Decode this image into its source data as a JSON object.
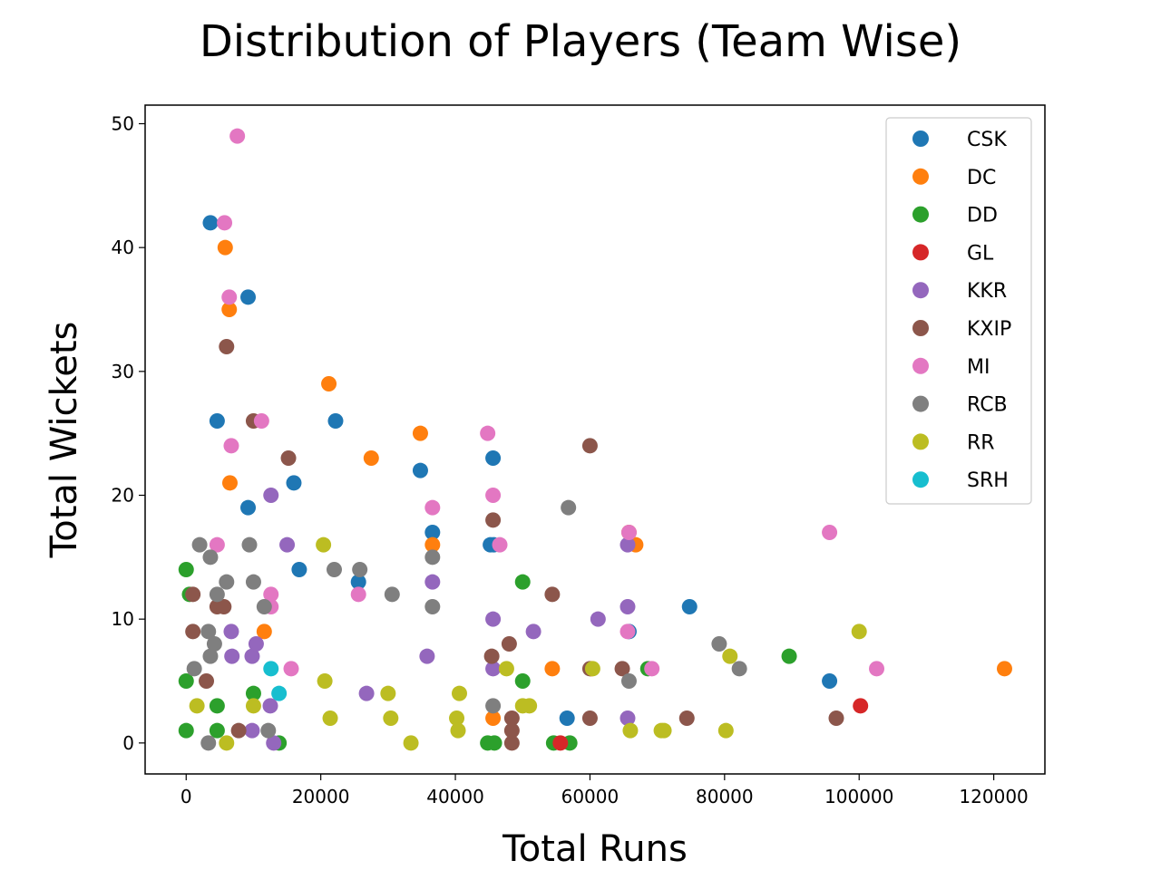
{
  "chart_data": {
    "type": "scatter",
    "title": "Distribution of Players (Team Wise)",
    "xlabel": "Total Runs",
    "ylabel": "Total Wickets",
    "xlim": [
      -6100,
      127600
    ],
    "ylim": [
      -2.5,
      51.5
    ],
    "xticks": [
      0,
      20000,
      40000,
      60000,
      80000,
      100000,
      120000
    ],
    "xtick_labels": [
      "0",
      "20000",
      "40000",
      "60000",
      "80000",
      "100000",
      "120000"
    ],
    "yticks": [
      0,
      10,
      20,
      30,
      40,
      50
    ],
    "ytick_labels": [
      "0",
      "10",
      "20",
      "30",
      "40",
      "50"
    ],
    "legend_position": "top-right",
    "grid": false,
    "series": [
      {
        "name": "CSK",
        "color": "#1f77b4",
        "points": [
          [
            3600,
            42
          ],
          [
            9200,
            36
          ],
          [
            4600,
            26
          ],
          [
            22200,
            26
          ],
          [
            9200,
            19
          ],
          [
            16000,
            21
          ],
          [
            16800,
            14
          ],
          [
            25600,
            13
          ],
          [
            34800,
            22
          ],
          [
            36600,
            17
          ],
          [
            45600,
            23
          ],
          [
            45200,
            16
          ],
          [
            45700,
            16
          ],
          [
            56600,
            2
          ],
          [
            65800,
            9
          ],
          [
            74800,
            11
          ],
          [
            95600,
            5
          ]
        ]
      },
      {
        "name": "DC",
        "color": "#ff7f0e",
        "points": [
          [
            5800,
            40
          ],
          [
            6400,
            35
          ],
          [
            6500,
            21
          ],
          [
            21200,
            29
          ],
          [
            27500,
            23
          ],
          [
            34800,
            25
          ],
          [
            36600,
            16
          ],
          [
            11600,
            9
          ],
          [
            45600,
            2
          ],
          [
            54400,
            6
          ],
          [
            65800,
            17
          ],
          [
            66800,
            16
          ],
          [
            60200,
            6
          ],
          [
            121600,
            6
          ]
        ]
      },
      {
        "name": "DD",
        "color": "#2ca02c",
        "points": [
          [
            0,
            14
          ],
          [
            500,
            12
          ],
          [
            0,
            5
          ],
          [
            0,
            1
          ],
          [
            4600,
            3
          ],
          [
            4600,
            1
          ],
          [
            10000,
            4
          ],
          [
            13800,
            0
          ],
          [
            44800,
            0
          ],
          [
            45800,
            0
          ],
          [
            50000,
            13
          ],
          [
            50000,
            5
          ],
          [
            54600,
            0
          ],
          [
            57000,
            0
          ],
          [
            68600,
            6
          ],
          [
            89600,
            7
          ]
        ]
      },
      {
        "name": "GL",
        "color": "#d62728",
        "points": [
          [
            55600,
            0
          ],
          [
            100200,
            3
          ]
        ]
      },
      {
        "name": "KKR",
        "color": "#9467bd",
        "points": [
          [
            12600,
            20
          ],
          [
            15000,
            16
          ],
          [
            6700,
            9
          ],
          [
            6800,
            7
          ],
          [
            9800,
            7
          ],
          [
            10400,
            8
          ],
          [
            12500,
            3
          ],
          [
            9800,
            1
          ],
          [
            13000,
            0
          ],
          [
            26800,
            4
          ],
          [
            35800,
            7
          ],
          [
            36600,
            13
          ],
          [
            45600,
            10
          ],
          [
            45600,
            6
          ],
          [
            51600,
            9
          ],
          [
            61200,
            10
          ],
          [
            65600,
            16
          ],
          [
            65600,
            11
          ],
          [
            65600,
            2
          ]
        ]
      },
      {
        "name": "KXIP",
        "color": "#8c564b",
        "points": [
          [
            6000,
            32
          ],
          [
            10000,
            26
          ],
          [
            15200,
            23
          ],
          [
            1000,
            12
          ],
          [
            1000,
            9
          ],
          [
            3000,
            5
          ],
          [
            4600,
            11
          ],
          [
            5600,
            11
          ],
          [
            7800,
            1
          ],
          [
            45600,
            18
          ],
          [
            45400,
            7
          ],
          [
            48000,
            8
          ],
          [
            48400,
            2
          ],
          [
            48400,
            1
          ],
          [
            48400,
            0
          ],
          [
            54400,
            12
          ],
          [
            60000,
            24
          ],
          [
            60000,
            6
          ],
          [
            60000,
            2
          ],
          [
            64800,
            6
          ],
          [
            74400,
            2
          ],
          [
            96600,
            2
          ]
        ]
      },
      {
        "name": "MI",
        "color": "#e377c2",
        "points": [
          [
            7600,
            49
          ],
          [
            5700,
            42
          ],
          [
            6400,
            36
          ],
          [
            11200,
            26
          ],
          [
            6700,
            24
          ],
          [
            4600,
            16
          ],
          [
            12600,
            12
          ],
          [
            12600,
            11
          ],
          [
            15600,
            6
          ],
          [
            25600,
            12
          ],
          [
            36600,
            19
          ],
          [
            44800,
            25
          ],
          [
            45600,
            20
          ],
          [
            46600,
            16
          ],
          [
            65800,
            17
          ],
          [
            65600,
            9
          ],
          [
            69200,
            6
          ],
          [
            95600,
            17
          ],
          [
            102600,
            6
          ]
        ]
      },
      {
        "name": "RCB",
        "color": "#7f7f7f",
        "points": [
          [
            2000,
            16
          ],
          [
            3600,
            15
          ],
          [
            4600,
            12
          ],
          [
            6000,
            13
          ],
          [
            9400,
            16
          ],
          [
            10000,
            13
          ],
          [
            11600,
            11
          ],
          [
            3300,
            9
          ],
          [
            3600,
            7
          ],
          [
            4200,
            8
          ],
          [
            1200,
            6
          ],
          [
            3300,
            0
          ],
          [
            12200,
            1
          ],
          [
            22000,
            14
          ],
          [
            25800,
            14
          ],
          [
            30600,
            12
          ],
          [
            36600,
            15
          ],
          [
            36600,
            11
          ],
          [
            45600,
            3
          ],
          [
            56800,
            19
          ],
          [
            65800,
            5
          ],
          [
            79200,
            8
          ],
          [
            82200,
            6
          ]
        ]
      },
      {
        "name": "RR",
        "color": "#bcbd22",
        "points": [
          [
            1600,
            3
          ],
          [
            6000,
            0
          ],
          [
            10000,
            3
          ],
          [
            20400,
            16
          ],
          [
            20600,
            5
          ],
          [
            21400,
            2
          ],
          [
            30000,
            4
          ],
          [
            30400,
            2
          ],
          [
            33400,
            0
          ],
          [
            40200,
            2
          ],
          [
            40400,
            1
          ],
          [
            40600,
            4
          ],
          [
            47600,
            6
          ],
          [
            50000,
            3
          ],
          [
            51000,
            3
          ],
          [
            60400,
            6
          ],
          [
            66000,
            1
          ],
          [
            70600,
            1
          ],
          [
            71000,
            1
          ],
          [
            80200,
            1
          ],
          [
            80800,
            7
          ],
          [
            100000,
            9
          ]
        ]
      },
      {
        "name": "SRH",
        "color": "#17becf",
        "points": [
          [
            12600,
            6
          ],
          [
            13800,
            4
          ]
        ]
      }
    ]
  }
}
